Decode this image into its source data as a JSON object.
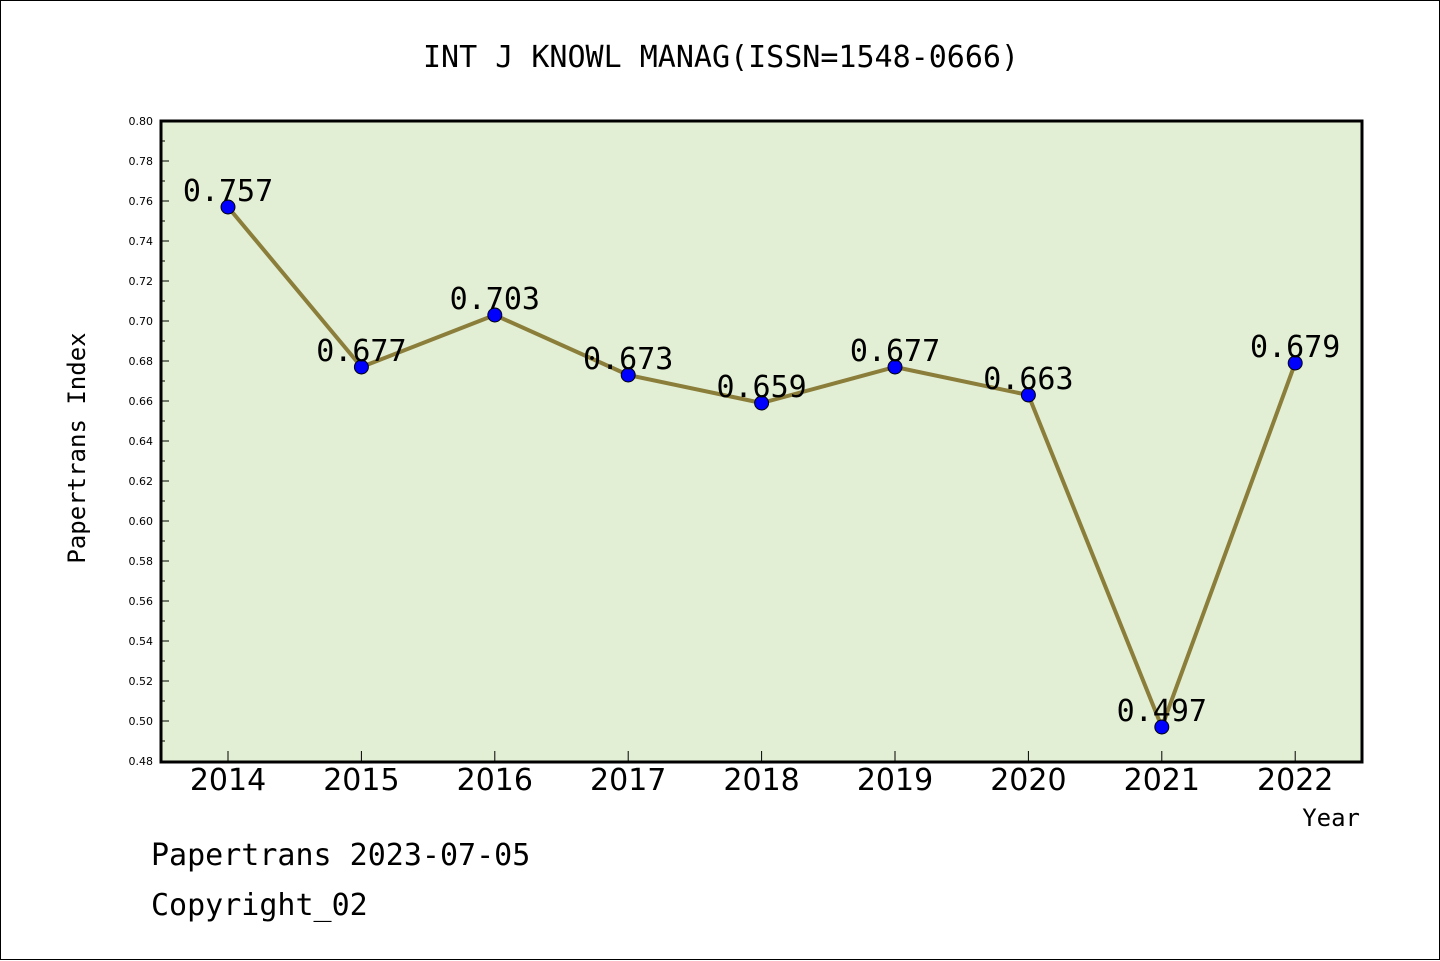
{
  "chart_data": {
    "type": "line",
    "title": "INT J KNOWL MANAG(ISSN=1548-0666)",
    "xlabel": "Year",
    "ylabel": "Papertrans Index",
    "categories": [
      "2014",
      "2015",
      "2016",
      "2017",
      "2018",
      "2019",
      "2020",
      "2021",
      "2022"
    ],
    "values": [
      0.757,
      0.677,
      0.703,
      0.673,
      0.659,
      0.677,
      0.663,
      0.497,
      0.679
    ],
    "value_labels": [
      "0.757",
      "0.677",
      "0.703",
      "0.673",
      "0.659",
      "0.677",
      "0.663",
      "0.497",
      "0.679"
    ],
    "ylim": [
      0.48,
      0.8
    ],
    "yticks": [
      "0.48",
      "0.50",
      "0.52",
      "0.54",
      "0.56",
      "0.58",
      "0.60",
      "0.62",
      "0.64",
      "0.66",
      "0.68",
      "0.70",
      "0.72",
      "0.74",
      "0.76",
      "0.78",
      "0.80"
    ],
    "grid": false,
    "legend": "none",
    "colors": {
      "plot_background": "#e2efd4",
      "line": "#8b7d3a",
      "marker": "#0000ff"
    }
  },
  "footer": {
    "date_text": "Papertrans 2023-07-05",
    "copyright_text": "Copyright_02"
  }
}
